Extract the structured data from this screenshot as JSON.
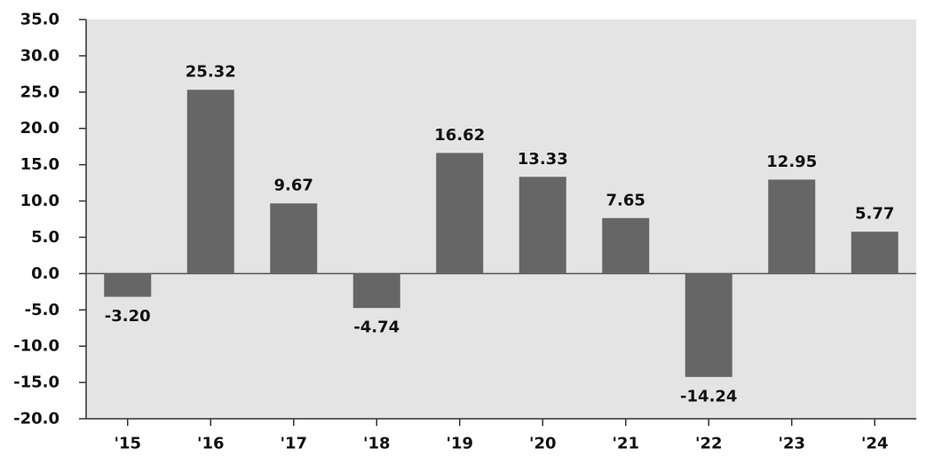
{
  "chart_data": {
    "type": "bar",
    "categories": [
      "'15",
      "'16",
      "'17",
      "'18",
      "'19",
      "'20",
      "'21",
      "'22",
      "'23",
      "'24"
    ],
    "values": [
      -3.2,
      25.32,
      9.67,
      -4.74,
      16.62,
      13.33,
      7.65,
      -14.24,
      12.95,
      5.77
    ],
    "data_labels": [
      "-3.20",
      "25.32",
      "9.67",
      "-4.74",
      "16.62",
      "13.33",
      "7.65",
      "-14.24",
      "12.95",
      "5.77"
    ],
    "y_ticks": [
      35,
      30,
      25,
      20,
      15,
      10,
      5,
      0,
      -5,
      -10,
      -15,
      -20
    ],
    "y_tick_labels": [
      "35.0",
      "30.0",
      "25.0",
      "20.0",
      "15.0",
      "10.0",
      "5.0",
      "0.0",
      "-5.0",
      "-10.0",
      "-15.0",
      "-20.0"
    ],
    "ylim": [
      -20,
      35
    ],
    "title": "",
    "xlabel": "",
    "ylabel": "",
    "grid": false,
    "colors": {
      "bar": "#666666",
      "plot_background": "#e4e4e4",
      "axis": "#333333",
      "text": "#111111"
    }
  }
}
